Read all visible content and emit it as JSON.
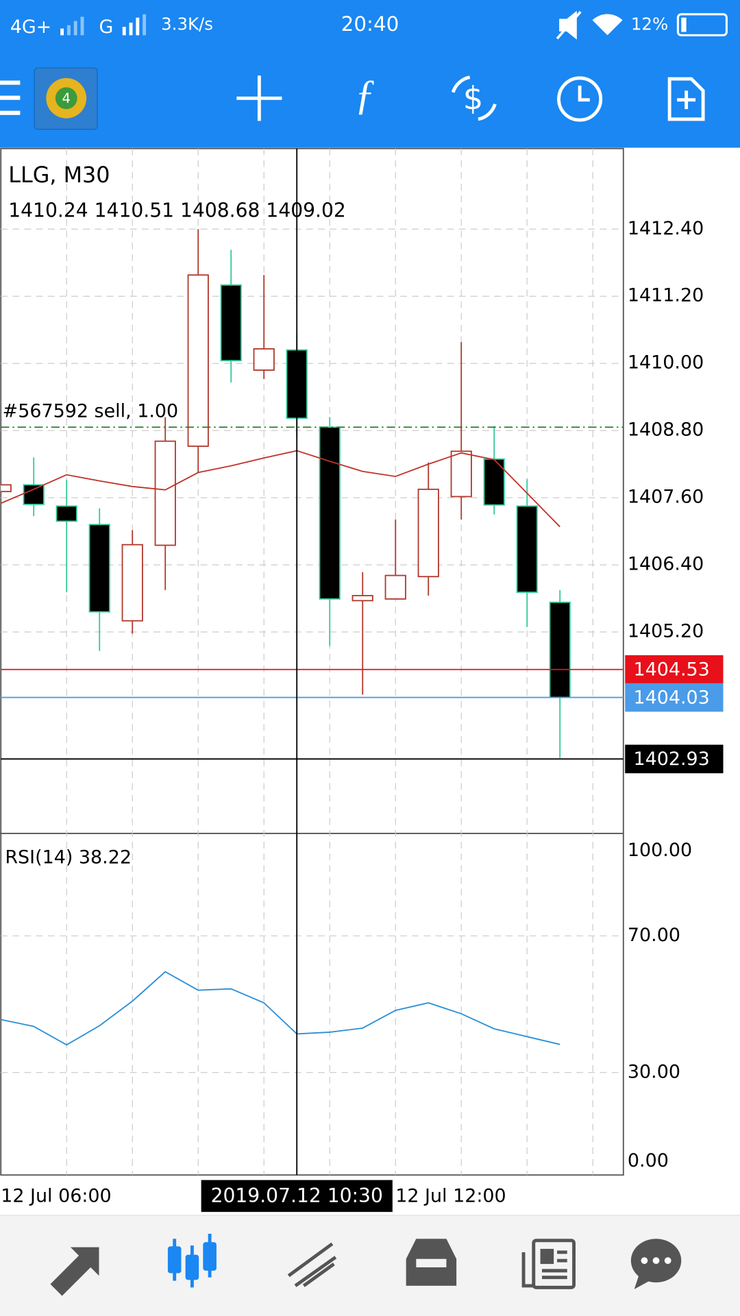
{
  "status_bar": {
    "network": "4G+",
    "network2": "G",
    "speed": "3.3K/s",
    "time": "20:40",
    "battery": "12%"
  },
  "chart_data": [
    {
      "type": "candlestick",
      "title": "LLG, M30",
      "categories": [
        "12 Jul 06:00",
        null,
        null,
        null,
        null,
        null,
        null,
        null,
        null,
        null,
        null,
        null,
        "12 Jul 12:00",
        null,
        null,
        null,
        null,
        null
      ],
      "open": [
        1407.71,
        1407.83,
        1407.45,
        1407.12,
        1405.4,
        1406.75,
        1408.52,
        1411.4,
        1409.88,
        1410.24,
        1408.86,
        1405.76,
        1405.79,
        1406.19,
        1407.62,
        1408.29,
        1407.45,
        1405.73
      ],
      "high": [
        1407.88,
        1408.32,
        1407.92,
        1407.41,
        1407.02,
        1409.04,
        1412.4,
        1412.03,
        1411.58,
        1410.51,
        1409.04,
        1406.27,
        1407.21,
        1408.23,
        1410.38,
        1408.88,
        1407.93,
        1405.95
      ],
      "low": [
        1407.66,
        1407.27,
        1405.91,
        1404.86,
        1405.17,
        1405.95,
        1408.05,
        1409.66,
        1409.72,
        1408.68,
        1404.95,
        1404.08,
        1405.79,
        1405.85,
        1407.21,
        1407.3,
        1405.29,
        1402.95
      ],
      "close": [
        1407.83,
        1407.48,
        1407.18,
        1405.56,
        1406.76,
        1408.61,
        1411.58,
        1410.05,
        1410.26,
        1409.02,
        1405.79,
        1405.85,
        1406.21,
        1407.75,
        1408.43,
        1407.47,
        1405.91,
        1404.03
      ],
      "up_color": "#b23a2e",
      "down_color": "#000000",
      "down_border": "#35c99b",
      "ma": {
        "color": "#c0322a",
        "values": [
          1407.5,
          1407.75,
          1408.01,
          1407.9,
          1407.8,
          1407.74,
          1408.05,
          1408.17,
          1408.31,
          1408.44,
          1408.25,
          1408.07,
          1407.98,
          1408.2,
          1408.4,
          1408.28,
          1407.68,
          1407.08
        ]
      },
      "lines": [
        {
          "label": "#567592 sell, 1.00",
          "value": 1408.86,
          "color": "#2a7a2a",
          "style": "dashdot"
        },
        {
          "value": 1404.53,
          "color": "#e8101a",
          "style": "solid"
        },
        {
          "value": 1404.03,
          "color": "#4a9be8",
          "style": "solid"
        }
      ],
      "crosshair": {
        "index": 9,
        "price": 1402.93,
        "time_label": "2019.07.12 10:30"
      },
      "ylim": [
        1401.6,
        1413.84
      ],
      "yticks": [
        {
          "value": 1405.2,
          "label": "1405.20"
        },
        {
          "value": 1406.4,
          "label": "1406.40"
        },
        {
          "value": 1407.6,
          "label": "1407.60"
        },
        {
          "value": 1408.8,
          "label": "1408.80"
        },
        {
          "value": 1410,
          "label": "1410.00"
        },
        {
          "value": 1411.2,
          "label": "1411.20"
        },
        {
          "value": 1412.4,
          "label": "1412.40"
        }
      ],
      "grid": true
    },
    {
      "type": "line",
      "series": [
        {
          "name": "RSI(14)",
          "color": "#2a8fd6",
          "values": [
            45.5,
            43.5,
            38.1,
            43.7,
            50.9,
            59.5,
            54.1,
            54.5,
            50.4,
            41.3,
            41.8,
            43.0,
            48.2,
            50.4,
            47.2,
            42.8,
            40.5,
            38.22
          ]
        }
      ],
      "ylim": [
        0,
        100
      ],
      "yticks": [
        {
          "value": 100,
          "label": "100.00"
        },
        {
          "value": 70,
          "label": "70.00"
        },
        {
          "value": 30,
          "label": "30.00"
        },
        {
          "value": 0,
          "label": "0.00"
        }
      ],
      "grid": true
    }
  ]
}
